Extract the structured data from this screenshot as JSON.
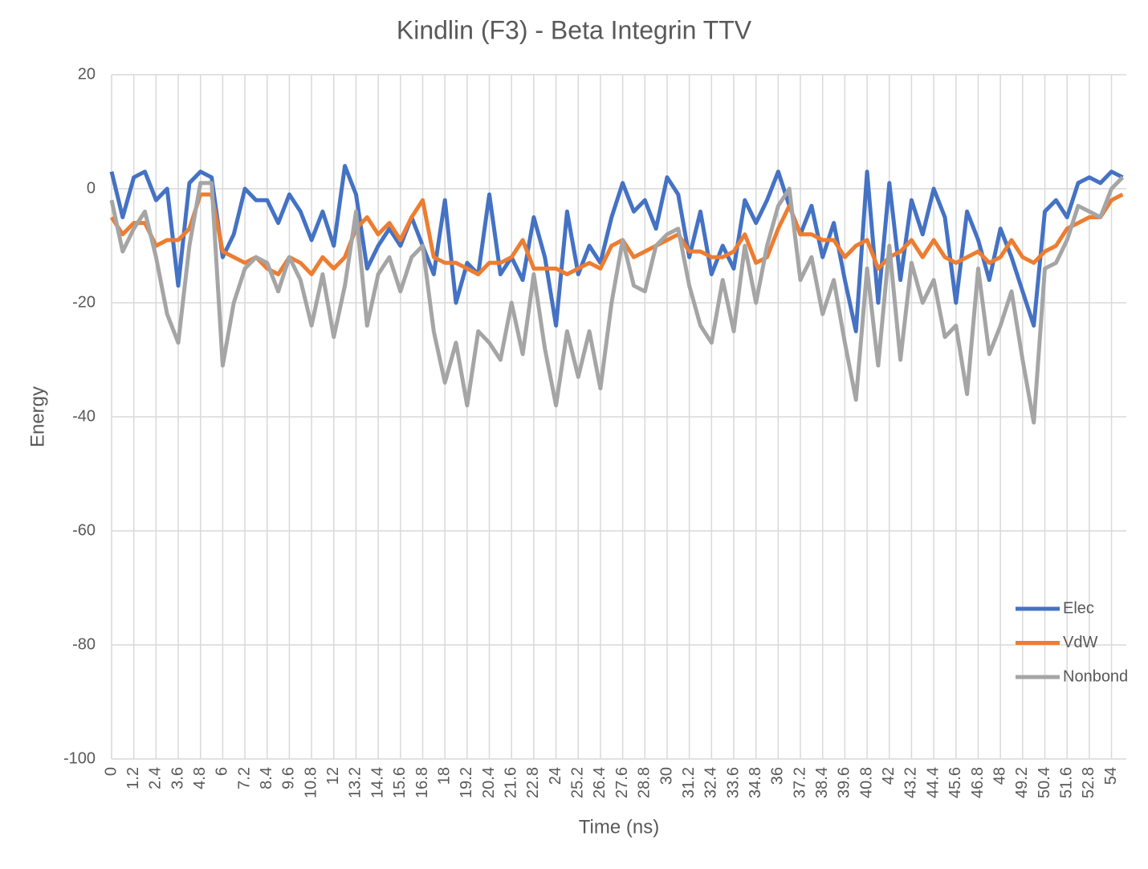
{
  "chart_data": {
    "type": "line",
    "title": "Kindlin (F3)  - Beta Integrin TTV",
    "x_label": "Time (ns)",
    "y_label": "Energy",
    "x": [
      0,
      0.6,
      1.2,
      1.8,
      2.4,
      3,
      3.6,
      4.2,
      4.8,
      5.4,
      6,
      6.6,
      7.2,
      7.8,
      8.4,
      9,
      9.6,
      10.2,
      10.8,
      11.4,
      12,
      12.6,
      13.2,
      13.8,
      14.4,
      15,
      15.6,
      16.2,
      16.8,
      17.4,
      18,
      18.6,
      19.2,
      19.8,
      20.4,
      21,
      21.6,
      22.2,
      22.8,
      23.4,
      24,
      24.6,
      25.2,
      25.8,
      26.4,
      27,
      27.6,
      28.2,
      28.8,
      29.4,
      30,
      30.6,
      31.2,
      31.8,
      32.4,
      33,
      33.6,
      34.2,
      34.8,
      35.4,
      36,
      36.6,
      37.2,
      37.8,
      38.4,
      39,
      39.6,
      40.2,
      40.8,
      41.4,
      42,
      42.6,
      43.2,
      43.8,
      44.4,
      45,
      45.6,
      46.2,
      46.8,
      47.4,
      48,
      48.6,
      49.2,
      49.8,
      50.4,
      51,
      51.6,
      52.2,
      52.8,
      53.4,
      54,
      54.6
    ],
    "series": [
      {
        "name": "Elec",
        "color": "#4472c4",
        "values": [
          3,
          -5,
          2,
          3,
          -2,
          0,
          -17,
          1,
          3,
          2,
          -12,
          -8,
          0,
          -2,
          -2,
          -6,
          -1,
          -4,
          -9,
          -4,
          -10,
          4,
          -1,
          -14,
          -10,
          -7,
          -10,
          -5,
          -10,
          -15,
          -2,
          -20,
          -13,
          -15,
          -1,
          -15,
          -12,
          -16,
          -5,
          -12,
          -24,
          -4,
          -15,
          -10,
          -13,
          -5,
          1,
          -4,
          -2,
          -7,
          2,
          -1,
          -12,
          -4,
          -15,
          -10,
          -14,
          -2,
          -6,
          -2,
          3,
          -3,
          -8,
          -3,
          -12,
          -6,
          -16,
          -25,
          3,
          -20,
          1,
          -16,
          -2,
          -8,
          0,
          -5,
          -20,
          -4,
          -9,
          -16,
          -7,
          -12,
          -18,
          -24,
          -4,
          -2,
          -5,
          1,
          2,
          1,
          3,
          2
        ]
      },
      {
        "name": "VdW",
        "color": "#ed7d31",
        "values": [
          -5,
          -8,
          -6,
          -6,
          -10,
          -9,
          -9,
          -7,
          -1,
          -1,
          -11,
          -12,
          -13,
          -12,
          -14,
          -15,
          -12,
          -13,
          -15,
          -12,
          -14,
          -12,
          -7,
          -5,
          -8,
          -6,
          -9,
          -5,
          -2,
          -12,
          -13,
          -13,
          -14,
          -15,
          -13,
          -13,
          -12,
          -9,
          -14,
          -14,
          -14,
          -15,
          -14,
          -13,
          -14,
          -10,
          -9,
          -12,
          -11,
          -10,
          -9,
          -8,
          -11,
          -11,
          -12,
          -12,
          -11,
          -8,
          -13,
          -12,
          -7,
          -3,
          -8,
          -8,
          -9,
          -9,
          -12,
          -10,
          -9,
          -14,
          -12,
          -11,
          -9,
          -12,
          -9,
          -12,
          -13,
          -12,
          -11,
          -13,
          -12,
          -9,
          -12,
          -13,
          -11,
          -10,
          -7,
          -6,
          -5,
          -5,
          -2,
          -1
        ]
      },
      {
        "name": "Nonbond",
        "color": "#a5a5a5",
        "values": [
          -2,
          -11,
          -7,
          -4,
          -12,
          -22,
          -27,
          -10,
          1,
          1,
          -31,
          -20,
          -14,
          -12,
          -13,
          -18,
          -12,
          -16,
          -24,
          -15,
          -26,
          -17,
          -4,
          -24,
          -15,
          -12,
          -18,
          -12,
          -10,
          -25,
          -34,
          -27,
          -38,
          -25,
          -27,
          -30,
          -20,
          -29,
          -15,
          -28,
          -38,
          -25,
          -33,
          -25,
          -35,
          -20,
          -9,
          -17,
          -18,
          -10,
          -8,
          -7,
          -17,
          -24,
          -27,
          -16,
          -25,
          -10,
          -20,
          -10,
          -3,
          0,
          -16,
          -12,
          -22,
          -16,
          -27,
          -37,
          -14,
          -31,
          -10,
          -30,
          -13,
          -20,
          -16,
          -26,
          -24,
          -36,
          -14,
          -29,
          -24,
          -18,
          -30,
          -41,
          -14,
          -13,
          -9,
          -3,
          -4,
          -5,
          0,
          2
        ]
      }
    ],
    "xlim": [
      0,
      54.8
    ],
    "xticks": [
      0,
      1.2,
      2.4,
      3.6,
      4.8,
      6,
      7.2,
      8.4,
      9.6,
      10.8,
      12,
      13.2,
      14.4,
      15.6,
      16.8,
      18,
      19.2,
      20.4,
      21.6,
      22.8,
      24,
      25.2,
      26.4,
      27.6,
      28.8,
      30,
      31.2,
      32.4,
      33.6,
      34.8,
      36,
      37.2,
      38.4,
      39.6,
      40.8,
      42,
      43.2,
      44.4,
      45.6,
      46.8,
      48,
      49.2,
      50.4,
      51.6,
      52.8,
      54
    ],
    "ylim": [
      -100,
      20
    ],
    "yticks": [
      -100,
      -80,
      -60,
      -40,
      -20,
      0,
      20
    ],
    "grid": true,
    "legend": "right"
  }
}
